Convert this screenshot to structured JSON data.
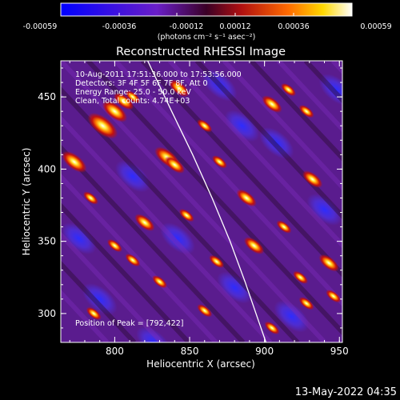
{
  "chart_data": {
    "type": "heatmap",
    "title": "Reconstructed RHESSI Image",
    "xlabel": "Heliocentric X (arcsec)",
    "ylabel": "Heliocentric Y (arcsec)",
    "xlim": [
      764,
      952
    ],
    "ylim": [
      280,
      475
    ],
    "x_ticks": [
      800,
      850,
      900,
      950
    ],
    "y_ticks": [
      300,
      350,
      400,
      450
    ],
    "colorbar": {
      "ticks": [
        "-0.00059",
        "-0.00036",
        "-0.00012",
        "0.00012",
        "0.00036",
        "0.00059"
      ],
      "unit_label": "(photons cm⁻² s⁻¹ asec⁻²)",
      "range": [
        -0.00059,
        0.00059
      ]
    },
    "annotations": [
      "10-Aug-2011 17:51:36.000 to 17:53:56.000",
      "Detectors: 3F 4F 5F 6F 7F 8F, Att 0",
      "Energy Range: 25.0 - 50.0 keV",
      "Clean, Total counts: 4.74E+03"
    ],
    "peak_label": "Position of Peak = [792,422]",
    "peak": [
      792,
      422
    ],
    "limb_points": [
      [
        822,
        475
      ],
      [
        838,
        440
      ],
      [
        852,
        410
      ],
      [
        865,
        380
      ],
      [
        877,
        350
      ],
      [
        887,
        322
      ],
      [
        896,
        295
      ],
      [
        901,
        280
      ]
    ],
    "blobs": [
      {
        "x": 773,
        "y": 405,
        "r": 5
      },
      {
        "x": 792,
        "y": 430,
        "r": 6
      },
      {
        "x": 800,
        "y": 440,
        "r": 5
      },
      {
        "x": 806,
        "y": 447,
        "r": 4
      },
      {
        "x": 835,
        "y": 408,
        "r": 5
      },
      {
        "x": 840,
        "y": 403,
        "r": 4
      },
      {
        "x": 843,
        "y": 456,
        "r": 4
      },
      {
        "x": 860,
        "y": 430,
        "r": 3
      },
      {
        "x": 812,
        "y": 450,
        "r": 3
      },
      {
        "x": 905,
        "y": 445,
        "r": 4
      },
      {
        "x": 928,
        "y": 440,
        "r": 3
      },
      {
        "x": 932,
        "y": 393,
        "r": 4
      },
      {
        "x": 888,
        "y": 380,
        "r": 4
      },
      {
        "x": 870,
        "y": 405,
        "r": 3
      },
      {
        "x": 893,
        "y": 347,
        "r": 4
      },
      {
        "x": 913,
        "y": 360,
        "r": 3
      },
      {
        "x": 868,
        "y": 336,
        "r": 3
      },
      {
        "x": 820,
        "y": 363,
        "r": 4
      },
      {
        "x": 812,
        "y": 337,
        "r": 3
      },
      {
        "x": 800,
        "y": 347,
        "r": 3
      },
      {
        "x": 784,
        "y": 380,
        "r": 3
      },
      {
        "x": 830,
        "y": 322,
        "r": 3
      },
      {
        "x": 786,
        "y": 300,
        "r": 3
      },
      {
        "x": 860,
        "y": 302,
        "r": 3
      },
      {
        "x": 905,
        "y": 290,
        "r": 3
      },
      {
        "x": 943,
        "y": 335,
        "r": 4
      },
      {
        "x": 946,
        "y": 312,
        "r": 3
      },
      {
        "x": 928,
        "y": 307,
        "r": 3
      },
      {
        "x": 924,
        "y": 325,
        "r": 3
      },
      {
        "x": 848,
        "y": 368,
        "r": 3
      },
      {
        "x": 916,
        "y": 455,
        "r": 3
      }
    ]
  },
  "footer": {
    "timestamp": "13-May-2022 04:35"
  }
}
